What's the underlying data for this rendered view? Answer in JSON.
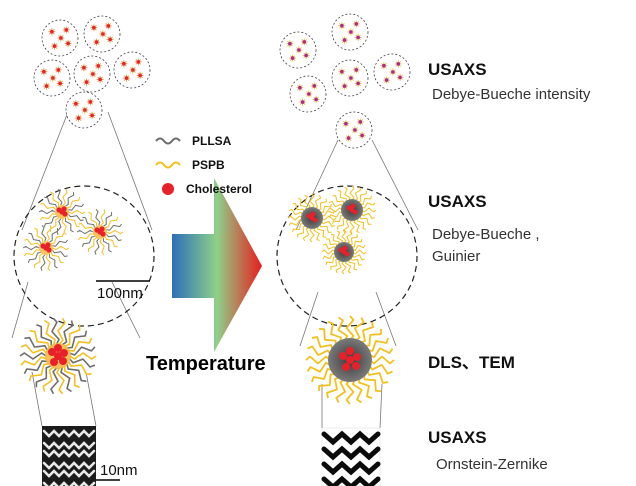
{
  "legend": {
    "items": [
      {
        "key": "pllsa",
        "label": "PLLSA",
        "color": "#6d6d6d",
        "shape": "wave"
      },
      {
        "key": "pspb",
        "label": "PSPB",
        "color": "#f2c11c",
        "shape": "wave"
      },
      {
        "key": "chol",
        "label": "Cholesterol",
        "color": "#e8202a",
        "shape": "dot"
      }
    ]
  },
  "arrow": {
    "label": "Temperature",
    "gradient": [
      "#2c6fb8",
      "#8fd08a",
      "#e81d1d"
    ]
  },
  "scales": {
    "upper": "100nm",
    "lower": "10nm"
  },
  "methods": [
    {
      "key": "m1",
      "title": "USAXS",
      "detail": [
        "Debye-Bueche intensity"
      ]
    },
    {
      "key": "m2",
      "title": "USAXS",
      "detail": [
        "Debye-Bueche ,",
        "Guinier"
      ]
    },
    {
      "key": "m3",
      "title": "DLS、TEM",
      "detail": []
    },
    {
      "key": "m4",
      "title": "USAXS",
      "detail": [
        "Ornstein-Zernike"
      ]
    }
  ]
}
